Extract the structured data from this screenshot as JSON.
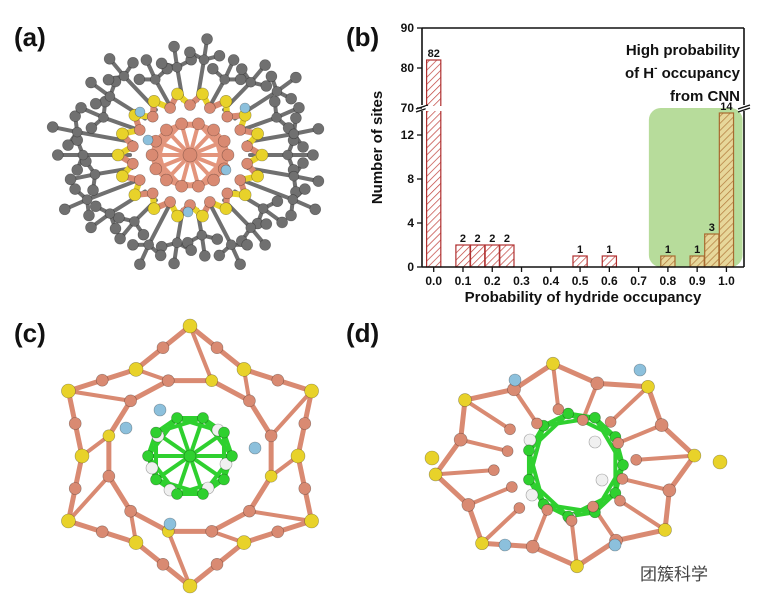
{
  "panels": {
    "a": "(a)",
    "b": "(b)",
    "c": "(c)",
    "d": "(d)"
  },
  "colors": {
    "gold": "#d98a72",
    "sulfur": "#e8d22a",
    "carbon": "#707070",
    "phosphorus": "#8cc0dc",
    "hydride_core": "#2fd02f",
    "hydrogen": "#f0f0f0",
    "highlight": "#9fd07a"
  },
  "chart_data": {
    "type": "bar",
    "xlabel": "Probability of hydride occupancy",
    "ylabel": "Number of sites",
    "annotation_lines": [
      "High probability",
      "of H",
      "occupancy",
      "from CNN"
    ],
    "annotation_superscript": "-",
    "x_ticks": [
      "0.0",
      "0.1",
      "0.2",
      "0.3",
      "0.4",
      "0.5",
      "0.6",
      "0.7",
      "0.8",
      "0.9",
      "1.0"
    ],
    "y_ticks_lower": [
      "0",
      "4",
      "8",
      "12"
    ],
    "y_ticks_upper": [
      "70",
      "80",
      "90"
    ],
    "bin_width": 0.05,
    "bins": [
      {
        "x": 0.0,
        "value": 82,
        "label": "82"
      },
      {
        "x": 0.1,
        "value": 2,
        "label": "2"
      },
      {
        "x": 0.15,
        "value": 2,
        "label": "2"
      },
      {
        "x": 0.2,
        "value": 2,
        "label": "2"
      },
      {
        "x": 0.25,
        "value": 2,
        "label": "2"
      },
      {
        "x": 0.5,
        "value": 1,
        "label": "1"
      },
      {
        "x": 0.6,
        "value": 1,
        "label": "1"
      },
      {
        "x": 0.8,
        "value": 1,
        "label": "1"
      },
      {
        "x": 0.9,
        "value": 1,
        "label": "1"
      },
      {
        "x": 0.95,
        "value": 3,
        "label": "3"
      },
      {
        "x": 1.0,
        "value": 14,
        "label": "14"
      }
    ],
    "axis_break": {
      "lower": [
        0,
        15
      ],
      "upper": [
        70,
        90
      ]
    }
  },
  "watermark": "团簇科学"
}
